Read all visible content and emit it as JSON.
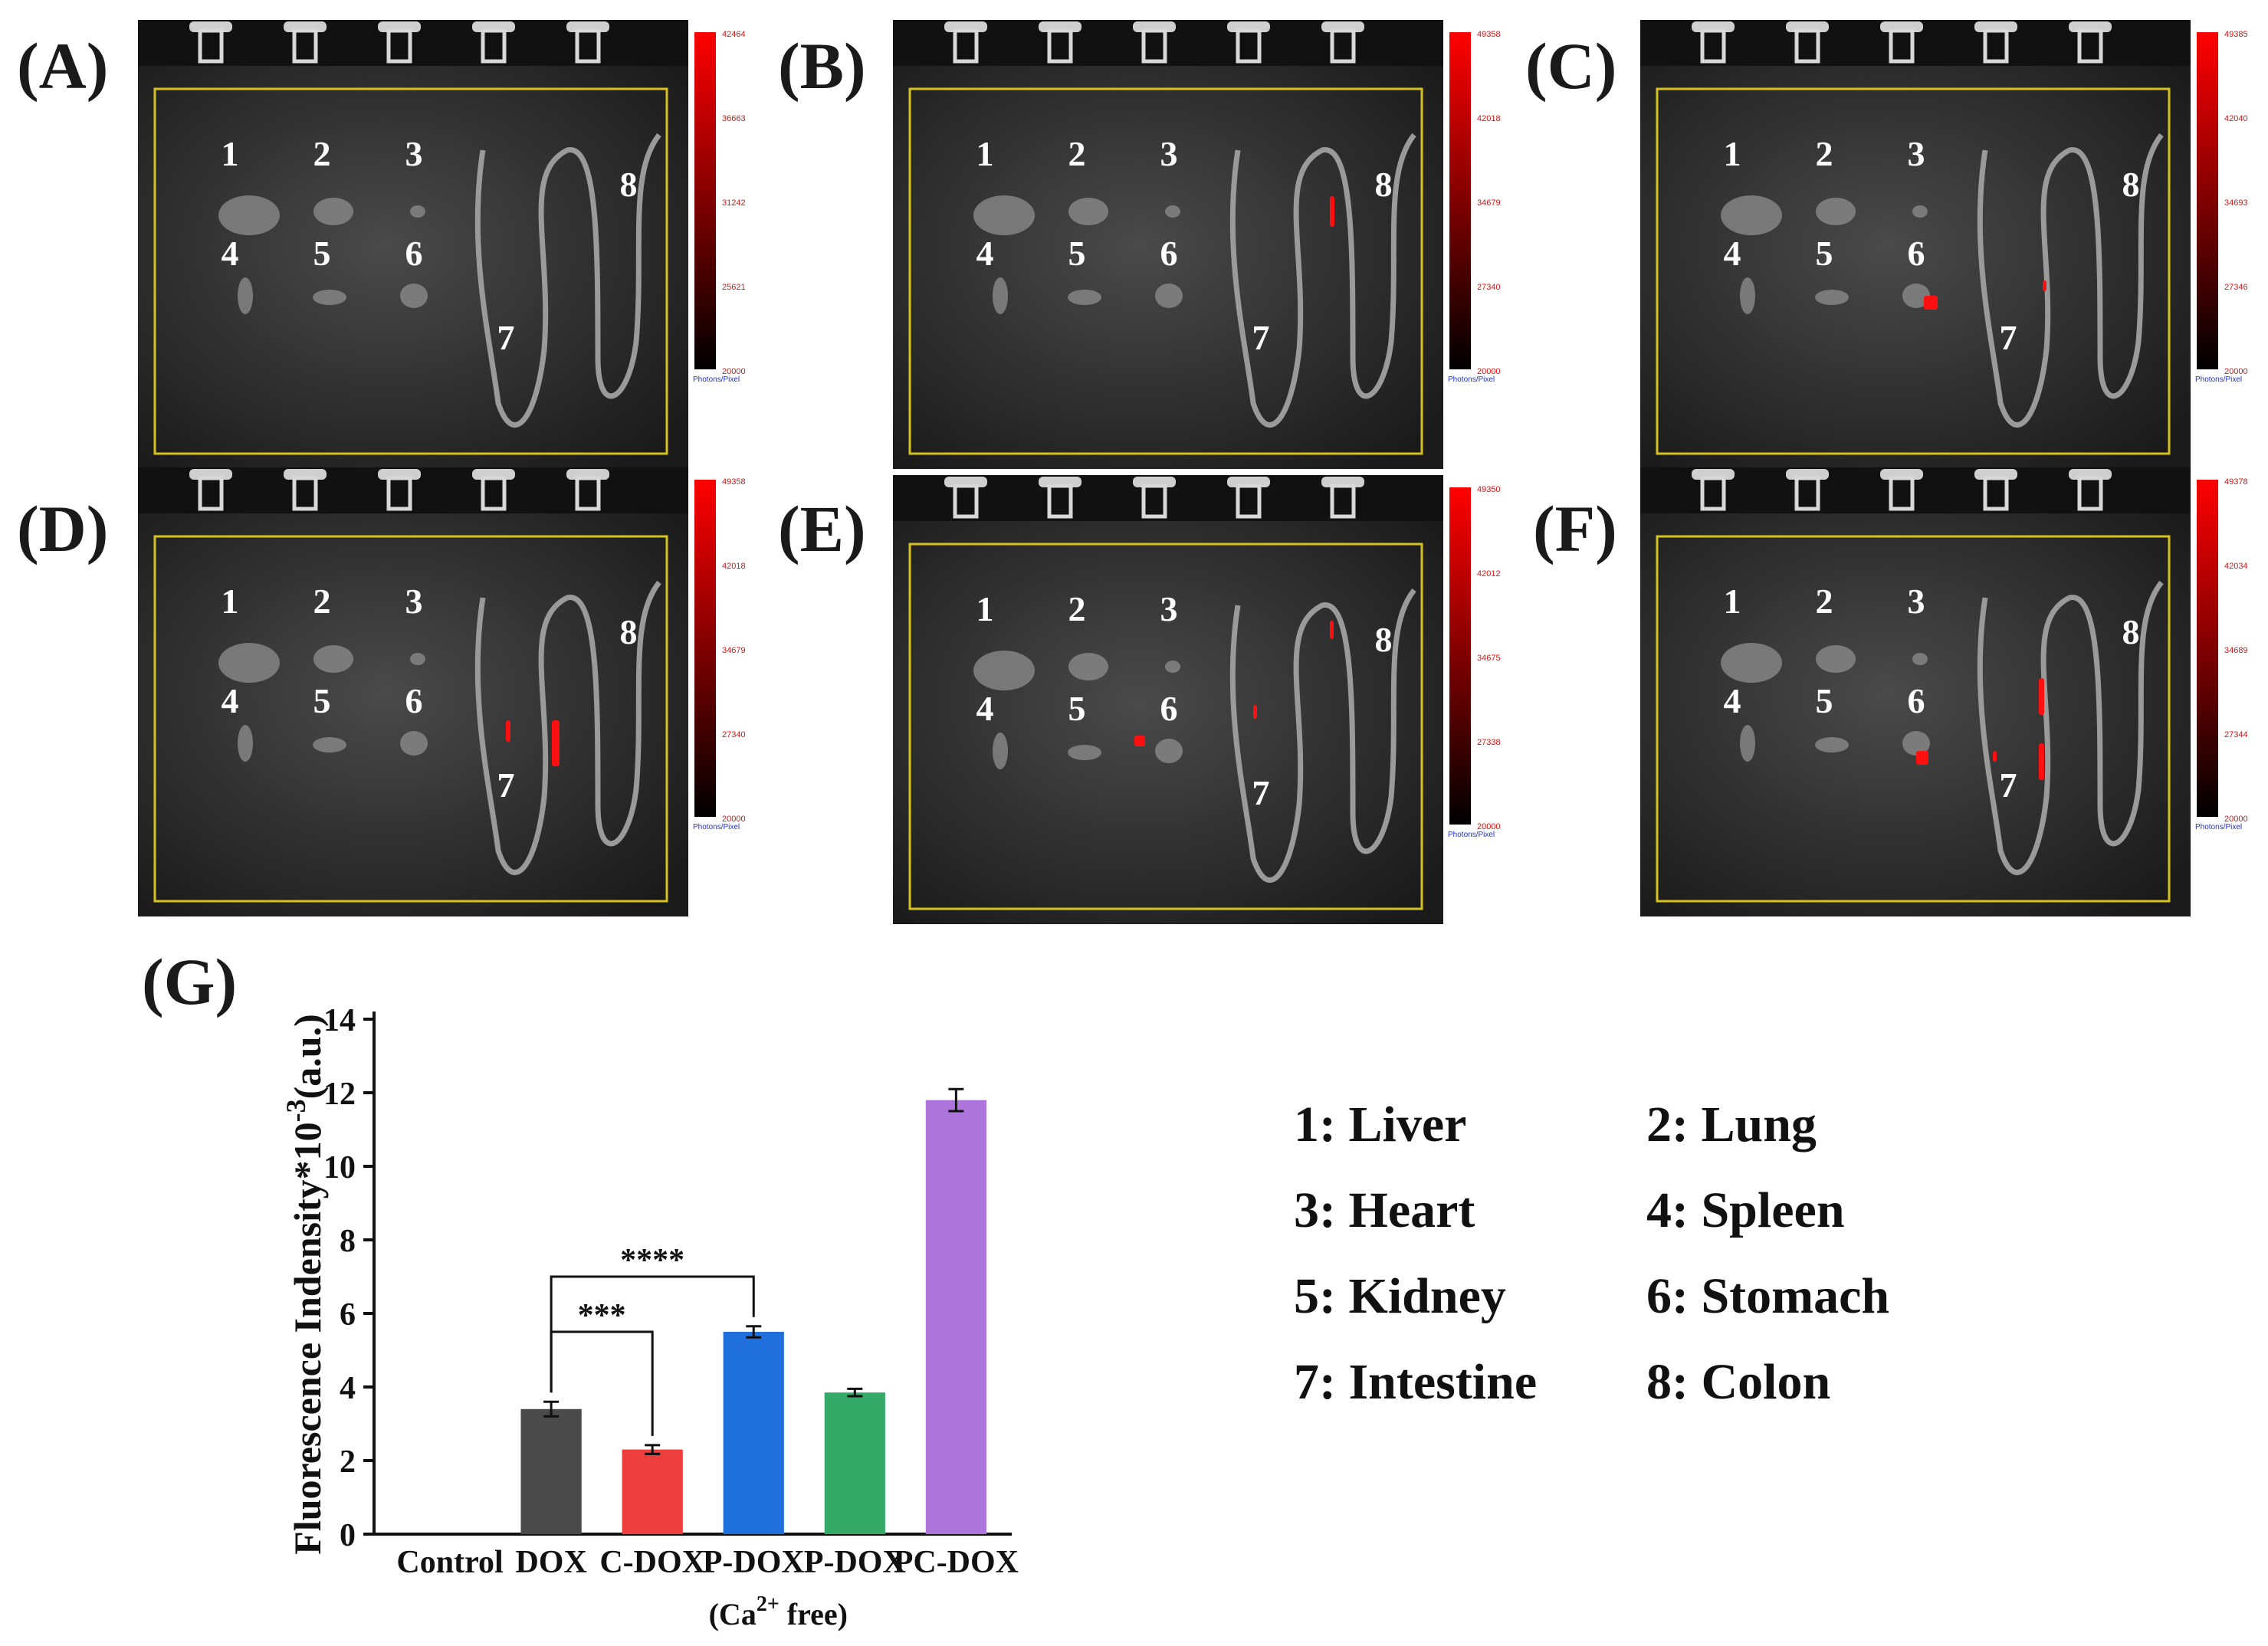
{
  "panels": [
    {
      "label": "(A)",
      "scale_max": "42464",
      "scale_ticks": [
        "42464",
        "36663",
        "31242",
        "25621",
        "20000"
      ],
      "scale_unit": "Photons/Pixel",
      "organs": [
        "1",
        "2",
        "3",
        "4",
        "5",
        "6",
        "7",
        "8"
      ]
    },
    {
      "label": "(B)",
      "scale_max": "49358",
      "scale_ticks": [
        "49358",
        "42018",
        "34679",
        "27340",
        "20000"
      ],
      "scale_unit": "Photons/Pixel",
      "organs": [
        "1",
        "2",
        "3",
        "4",
        "5",
        "6",
        "7",
        "8"
      ]
    },
    {
      "label": "(C)",
      "scale_max": "49385",
      "scale_ticks": [
        "49385",
        "42040",
        "34693",
        "27346",
        "20000"
      ],
      "scale_unit": "Photons/Pixel",
      "organs": [
        "1",
        "2",
        "3",
        "4",
        "5",
        "6",
        "7",
        "8"
      ]
    },
    {
      "label": "(D)",
      "scale_max": "49358",
      "scale_ticks": [
        "49358",
        "42018",
        "34679",
        "27340",
        "20000"
      ],
      "scale_unit": "Photons/Pixel",
      "organs": [
        "1",
        "2",
        "3",
        "4",
        "5",
        "6",
        "7",
        "8"
      ]
    },
    {
      "label": "(E)",
      "scale_max": "49350",
      "scale_ticks": [
        "49350",
        "42012",
        "34675",
        "27338",
        "20000"
      ],
      "scale_unit": "Photons/Pixel",
      "organs": [
        "1",
        "2",
        "3",
        "4",
        "5",
        "6",
        "7",
        "8"
      ]
    },
    {
      "label": "(F)",
      "scale_max": "49378",
      "scale_ticks": [
        "49378",
        "42034",
        "34689",
        "27344",
        "20000"
      ],
      "scale_unit": "Photons/Pixel",
      "organs": [
        "1",
        "2",
        "3",
        "4",
        "5",
        "6",
        "7",
        "8"
      ]
    }
  ],
  "legend": [
    {
      "text": "1: Liver"
    },
    {
      "text": "2: Lung"
    },
    {
      "text": "3: Heart"
    },
    {
      "text": "4: Spleen"
    },
    {
      "text": "5: Kidney"
    },
    {
      "text": "6: Stomach"
    },
    {
      "text": "7: Intestine"
    },
    {
      "text": "8: Colon"
    }
  ],
  "chart_panel_label": "(G)",
  "chart_data": {
    "type": "bar",
    "categories": [
      "Control",
      "DOX",
      "C-DOX",
      "P-DOX",
      "P-DOX",
      "PC-DOX"
    ],
    "category_sublabel": {
      "index": 4,
      "text_prefix": "(Ca",
      "text_sup": "2+",
      "text_suffix": " free)"
    },
    "values": [
      0,
      3.4,
      2.3,
      5.5,
      3.85,
      11.8
    ],
    "errors": [
      0,
      0.2,
      0.12,
      0.15,
      0.1,
      0.3
    ],
    "colors": [
      "#ffffff",
      "#4a4a4a",
      "#ee3d3d",
      "#1f6fdc",
      "#35aa68",
      "#ad74dc"
    ],
    "ylabel_main": "Fluorescence Indensity*10",
    "ylabel_sup": "-3",
    "ylabel_unit": "(a.u.)",
    "ylim": [
      0,
      14
    ],
    "yticks": [
      0,
      2,
      4,
      6,
      8,
      10,
      12,
      14
    ],
    "significance": [
      {
        "from": 1,
        "to": 3,
        "label": "****"
      },
      {
        "from": 1,
        "to": 2,
        "label": "***"
      }
    ]
  }
}
